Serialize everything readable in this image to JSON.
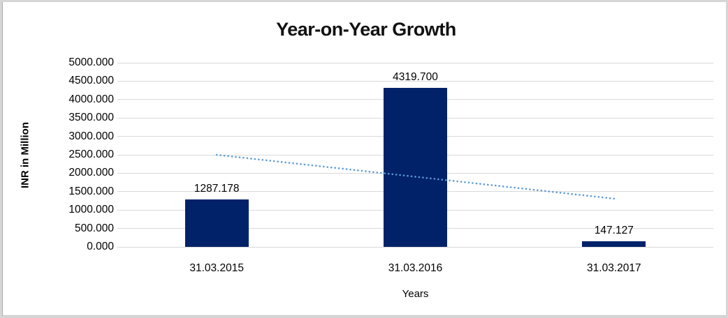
{
  "frame": {
    "border_color": "#d6d6d6"
  },
  "chart_data": {
    "type": "bar",
    "title": "Year-on-Year Growth",
    "categories": [
      "31.03.2015",
      "31.03.2016",
      "31.03.2017"
    ],
    "values": [
      1287.178,
      4319.7,
      147.127
    ],
    "data_labels": [
      "1287.178",
      "4319.700",
      "147.127"
    ],
    "xlabel": "Years",
    "ylabel": "INR in Million",
    "ylim": [
      0,
      5000
    ],
    "ytick_step": 500,
    "ytick_labels": [
      "0.000",
      "500.000",
      "1000.000",
      "1500.000",
      "2000.000",
      "2500.000",
      "3000.000",
      "3500.000",
      "4000.000",
      "4500.000",
      "5000.000"
    ],
    "grid": true,
    "gridline_color": "#d9d9d9",
    "bar_color": "#012169",
    "text_color": "#000000",
    "legend": "none",
    "trendline": {
      "type": "linear",
      "style": "dotted",
      "color": "#5b9bd5",
      "start_value": 2500,
      "end_value": 1310
    }
  }
}
